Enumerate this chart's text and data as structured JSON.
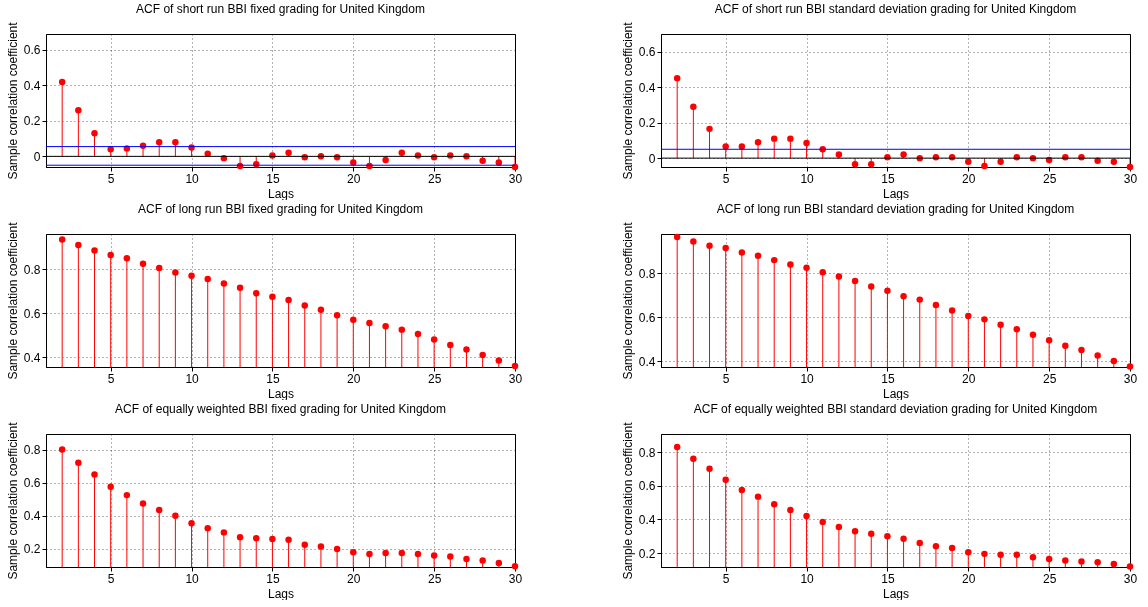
{
  "chart_data": [
    {
      "type": "lollipop",
      "title": "ACF of short run BBI fixed grading for United Kingdom",
      "xlabel": "Lags",
      "ylabel": "Sample correlation coefficient",
      "x": [
        2,
        3,
        4,
        5,
        6,
        7,
        8,
        9,
        10,
        11,
        12,
        13,
        14,
        15,
        16,
        17,
        18,
        19,
        20,
        21,
        22,
        23,
        24,
        25,
        26,
        27,
        28,
        29,
        30
      ],
      "values": [
        0.42,
        0.26,
        0.13,
        0.04,
        0.045,
        0.06,
        0.08,
        0.08,
        0.05,
        0.015,
        -0.01,
        -0.055,
        -0.045,
        0.005,
        0.02,
        -0.005,
        0,
        -0.005,
        -0.035,
        -0.055,
        -0.02,
        0.02,
        0.005,
        -0.005,
        0.005,
        0,
        -0.025,
        -0.035,
        -0.06
      ],
      "color": "#ff0000",
      "marker": "circle",
      "grid": true,
      "xlim": [
        1,
        30
      ],
      "xticks": [
        5,
        10,
        15,
        20,
        25,
        30
      ],
      "ylim": [
        -0.06,
        0.69
      ],
      "yticks": [
        0,
        0.2,
        0.4,
        0.6
      ],
      "ref_lines": [
        {
          "axis": "y",
          "value": 0,
          "color": "#000000"
        },
        {
          "axis": "y",
          "value": 0.055,
          "color": "#0000ff"
        },
        {
          "axis": "y",
          "value": -0.05,
          "color": "#0000ff"
        }
      ]
    },
    {
      "type": "lollipop",
      "title": "ACF of short run BBI standard deviation grading for United Kingdom",
      "xlabel": "Lags",
      "ylabel": "Sample correlation coefficient",
      "x": [
        2,
        3,
        4,
        5,
        6,
        7,
        8,
        9,
        10,
        11,
        12,
        13,
        14,
        15,
        16,
        17,
        18,
        19,
        20,
        21,
        22,
        23,
        24,
        25,
        26,
        27,
        28,
        29,
        30
      ],
      "values": [
        0.45,
        0.29,
        0.165,
        0.065,
        0.065,
        0.09,
        0.11,
        0.11,
        0.085,
        0.05,
        0.02,
        -0.035,
        -0.035,
        0.005,
        0.02,
        0,
        0.005,
        0.005,
        -0.02,
        -0.045,
        -0.02,
        0.005,
        0,
        -0.01,
        0.005,
        0.005,
        -0.015,
        -0.02,
        -0.05
      ],
      "color": "#ff0000",
      "marker": "circle",
      "grid": true,
      "xlim": [
        1,
        30
      ],
      "xticks": [
        5,
        10,
        15,
        20,
        25,
        30
      ],
      "ylim": [
        -0.05,
        0.7
      ],
      "yticks": [
        0,
        0.2,
        0.4,
        0.6
      ],
      "ref_lines": [
        {
          "axis": "y",
          "value": 0,
          "color": "#000000"
        },
        {
          "axis": "y",
          "value": 0.05,
          "color": "#0000ff"
        }
      ]
    },
    {
      "type": "lollipop",
      "title": "ACF of long run BBI fixed grading for United Kingdom",
      "xlabel": "Lags",
      "ylabel": "Sample correlation coefficient",
      "x": [
        2,
        3,
        4,
        5,
        6,
        7,
        8,
        9,
        10,
        11,
        12,
        13,
        14,
        15,
        16,
        17,
        18,
        19,
        20,
        21,
        22,
        23,
        24,
        25,
        26,
        27,
        28,
        29,
        30
      ],
      "values": [
        0.935,
        0.91,
        0.885,
        0.865,
        0.85,
        0.825,
        0.805,
        0.785,
        0.77,
        0.755,
        0.735,
        0.715,
        0.69,
        0.675,
        0.66,
        0.635,
        0.615,
        0.59,
        0.57,
        0.555,
        0.54,
        0.525,
        0.505,
        0.48,
        0.455,
        0.435,
        0.41,
        0.385,
        0.36
      ],
      "color": "#ff0000",
      "marker": "circle",
      "grid": true,
      "xlim": [
        1,
        30
      ],
      "xticks": [
        5,
        10,
        15,
        20,
        25,
        30
      ],
      "ylim": [
        0.355,
        0.96
      ],
      "yticks": [
        0.4,
        0.6,
        0.8
      ]
    },
    {
      "type": "lollipop",
      "title": "ACF of long run BBI standard deviation grading for United Kingdom",
      "xlabel": "Lags",
      "ylabel": "Sample correlation coefficient",
      "x": [
        2,
        3,
        4,
        5,
        6,
        7,
        8,
        9,
        10,
        11,
        12,
        13,
        14,
        15,
        16,
        17,
        18,
        19,
        20,
        21,
        22,
        23,
        24,
        25,
        26,
        27,
        28,
        29,
        30
      ],
      "values": [
        0.965,
        0.945,
        0.925,
        0.915,
        0.895,
        0.88,
        0.86,
        0.84,
        0.825,
        0.805,
        0.785,
        0.765,
        0.74,
        0.72,
        0.695,
        0.68,
        0.655,
        0.63,
        0.605,
        0.59,
        0.565,
        0.545,
        0.52,
        0.495,
        0.47,
        0.45,
        0.425,
        0.4,
        0.375
      ],
      "color": "#ff0000",
      "marker": "circle",
      "grid": true,
      "xlim": [
        1,
        30
      ],
      "xticks": [
        5,
        10,
        15,
        20,
        25,
        30
      ],
      "ylim": [
        0.373,
        0.979
      ],
      "yticks": [
        0.4,
        0.6,
        0.8
      ]
    },
    {
      "type": "lollipop",
      "title": "ACF of equally weighted BBI fixed grading for United Kingdom",
      "xlabel": "Lags",
      "ylabel": "Sample correlation coefficient",
      "x": [
        2,
        3,
        4,
        5,
        6,
        7,
        8,
        9,
        10,
        11,
        12,
        13,
        14,
        15,
        16,
        17,
        18,
        19,
        20,
        21,
        22,
        23,
        24,
        25,
        26,
        27,
        28,
        29,
        30
      ],
      "values": [
        0.8,
        0.72,
        0.65,
        0.575,
        0.525,
        0.475,
        0.435,
        0.4,
        0.355,
        0.325,
        0.3,
        0.27,
        0.265,
        0.26,
        0.255,
        0.225,
        0.215,
        0.2,
        0.18,
        0.17,
        0.175,
        0.175,
        0.17,
        0.16,
        0.155,
        0.14,
        0.13,
        0.115,
        0.095
      ],
      "color": "#ff0000",
      "marker": "circle",
      "grid": true,
      "xlim": [
        1,
        30
      ],
      "xticks": [
        5,
        10,
        15,
        20,
        25,
        30
      ],
      "ylim": [
        0.091,
        0.894
      ],
      "yticks": [
        0.2,
        0.4,
        0.6,
        0.8
      ]
    },
    {
      "type": "lollipop",
      "title": "ACF of equally weighted BBI standard deviation grading for United Kingdom",
      "xlabel": "Lags",
      "ylabel": "Sample correlation coefficient",
      "x": [
        2,
        3,
        4,
        5,
        6,
        7,
        8,
        9,
        10,
        11,
        12,
        13,
        14,
        15,
        16,
        17,
        18,
        19,
        20,
        21,
        22,
        23,
        24,
        25,
        26,
        27,
        28,
        29,
        30
      ],
      "values": [
        0.83,
        0.76,
        0.7,
        0.635,
        0.575,
        0.535,
        0.49,
        0.455,
        0.42,
        0.385,
        0.355,
        0.33,
        0.315,
        0.3,
        0.285,
        0.26,
        0.24,
        0.23,
        0.205,
        0.195,
        0.19,
        0.19,
        0.175,
        0.165,
        0.155,
        0.15,
        0.145,
        0.135,
        0.12
      ],
      "color": "#ff0000",
      "marker": "circle",
      "grid": true,
      "xlim": [
        1,
        30
      ],
      "xticks": [
        5,
        10,
        15,
        20,
        25,
        30
      ],
      "ylim": [
        0.117,
        0.907
      ],
      "yticks": [
        0.2,
        0.4,
        0.6,
        0.8
      ]
    }
  ]
}
